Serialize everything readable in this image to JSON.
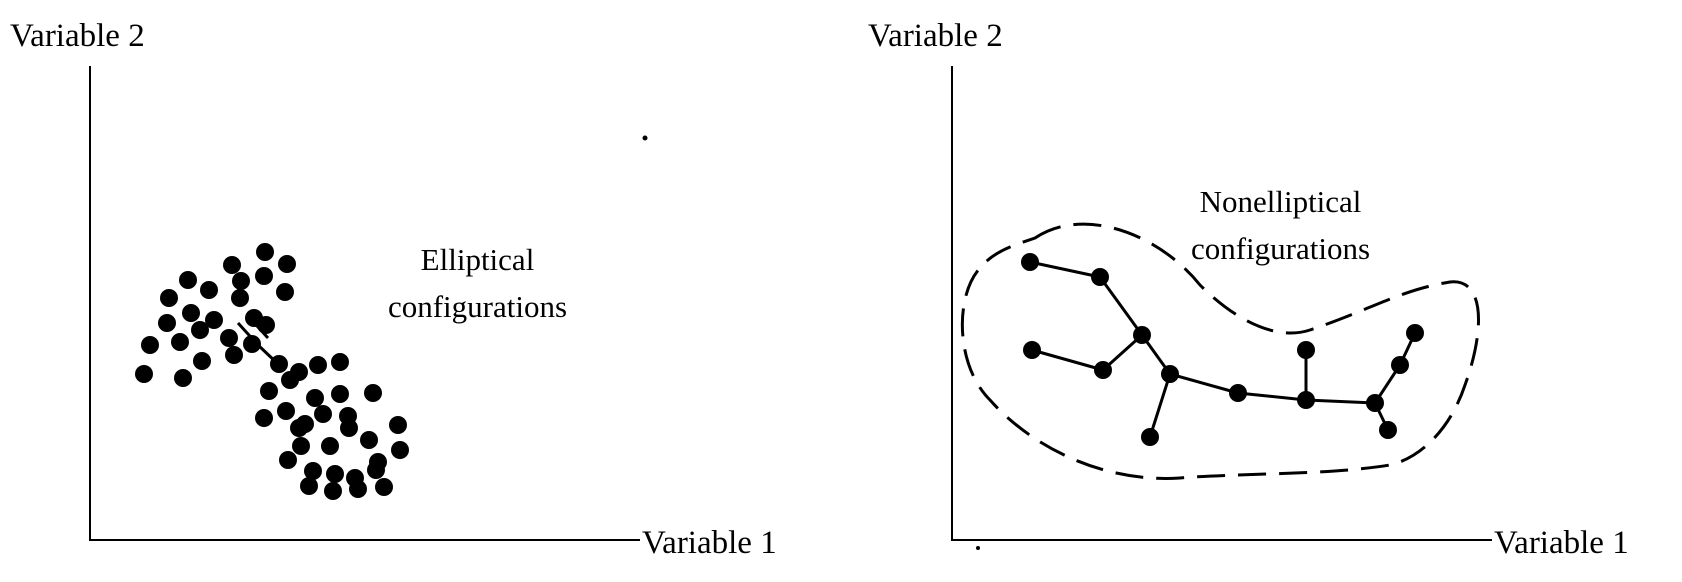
{
  "panels": [
    {
      "id": "elliptical",
      "y_axis_label": "Variable 2",
      "x_axis_label": "Variable 1",
      "caption_line1": "Elliptical",
      "caption_line2": "configurations"
    },
    {
      "id": "nonelliptical",
      "y_axis_label": "Variable 2",
      "x_axis_label": "Variable 1",
      "caption_line1": "Nonelliptical",
      "caption_line2": "configurations"
    }
  ],
  "colors": {
    "ink": "#000000",
    "background": "#ffffff"
  }
}
